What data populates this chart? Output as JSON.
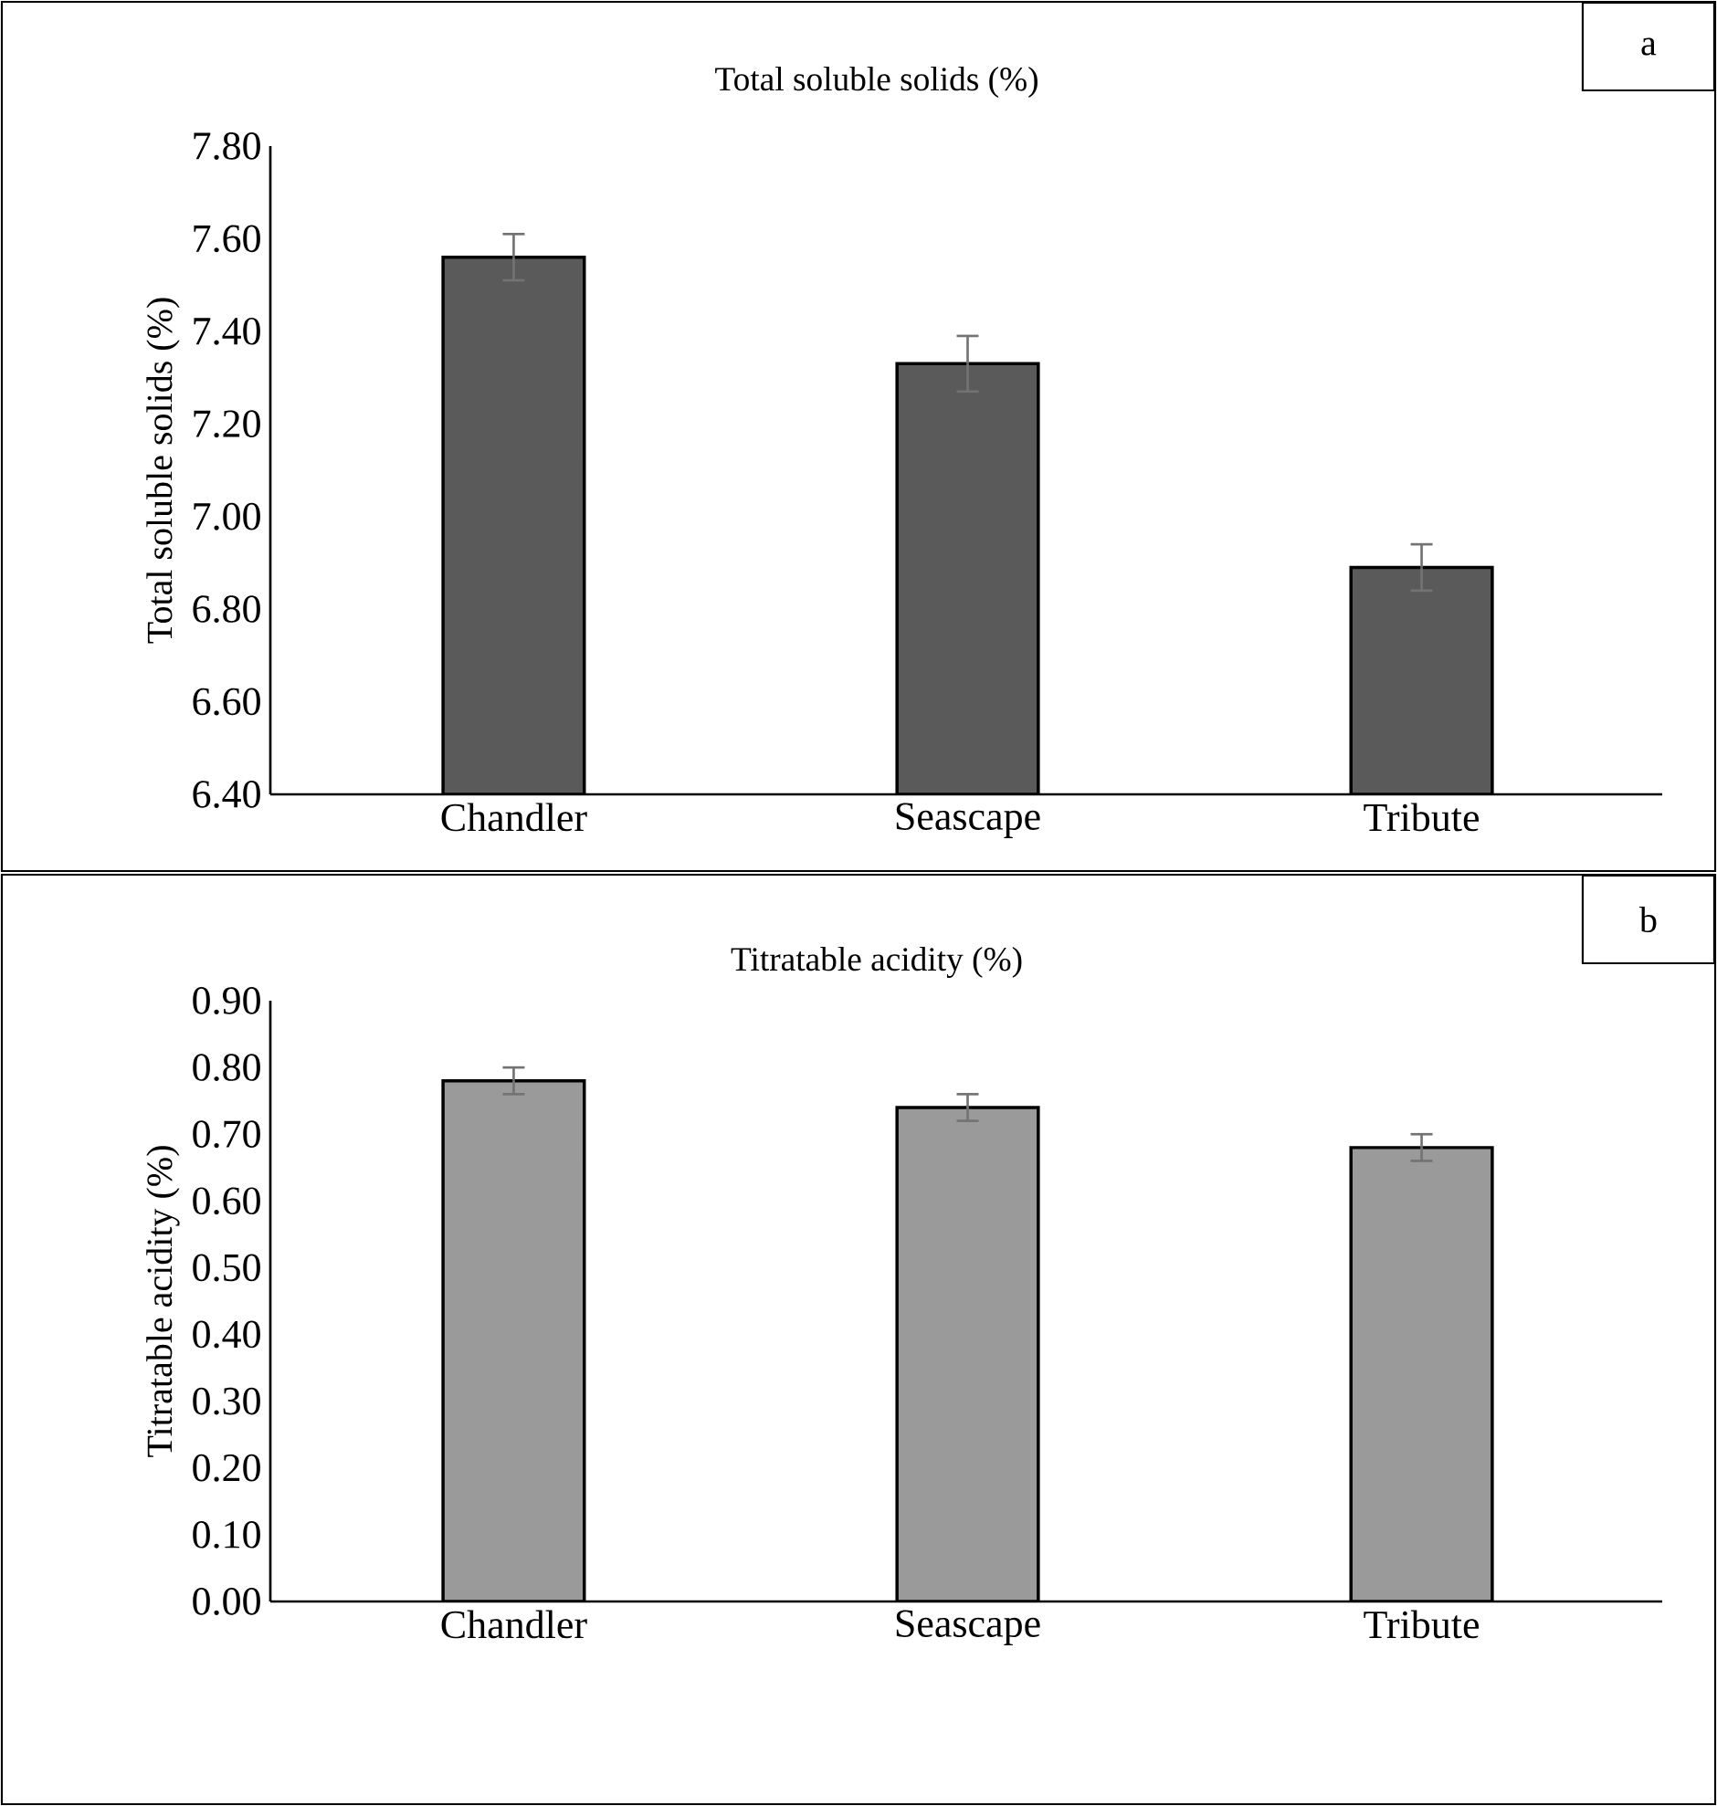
{
  "chart_data": [
    {
      "type": "bar",
      "title": "Total soluble solids (%)",
      "ylabel": "Total soluble solids (%)",
      "categories": [
        "Chandler",
        "Seascape",
        "Tribute"
      ],
      "values": [
        7.56,
        7.33,
        6.89
      ],
      "errors": [
        0.05,
        0.06,
        0.05
      ],
      "color": "#5a5a5a",
      "ylim": [
        6.4,
        7.8
      ],
      "yticks": [
        {
          "value": 6.4,
          "label": "6.40"
        },
        {
          "value": 6.6,
          "label": "6.60"
        },
        {
          "value": 6.8,
          "label": "6.80"
        },
        {
          "value": 7.0,
          "label": "7.00"
        },
        {
          "value": 7.2,
          "label": "7.20"
        },
        {
          "value": 7.4,
          "label": "7.40"
        },
        {
          "value": 7.6,
          "label": "7.60"
        },
        {
          "value": 7.8,
          "label": "7.80"
        }
      ],
      "annotations": [
        "a"
      ]
    },
    {
      "type": "bar",
      "title": "Titratable  acidity (%)",
      "ylabel": "Titratable  acidity (%)",
      "categories": [
        "Chandler",
        "Seascape",
        "Tribute"
      ],
      "values": [
        0.78,
        0.74,
        0.68
      ],
      "errors": [
        0.02,
        0.02,
        0.02
      ],
      "color": "#9a9a9a",
      "ylim": [
        0,
        0.9
      ],
      "yticks": [
        {
          "value": 0,
          "label": "0.00"
        },
        {
          "value": 0.1,
          "label": "0.10"
        },
        {
          "value": 0.2,
          "label": "0.20"
        },
        {
          "value": 0.3,
          "label": "0.30"
        },
        {
          "value": 0.4,
          "label": "0.40"
        },
        {
          "value": 0.5,
          "label": "0.50"
        },
        {
          "value": 0.6,
          "label": "0.60"
        },
        {
          "value": 0.7,
          "label": "0.70"
        },
        {
          "value": 0.8,
          "label": "0.80"
        },
        {
          "value": 0.9,
          "label": "0.90"
        }
      ],
      "annotations": [
        "b"
      ]
    }
  ]
}
